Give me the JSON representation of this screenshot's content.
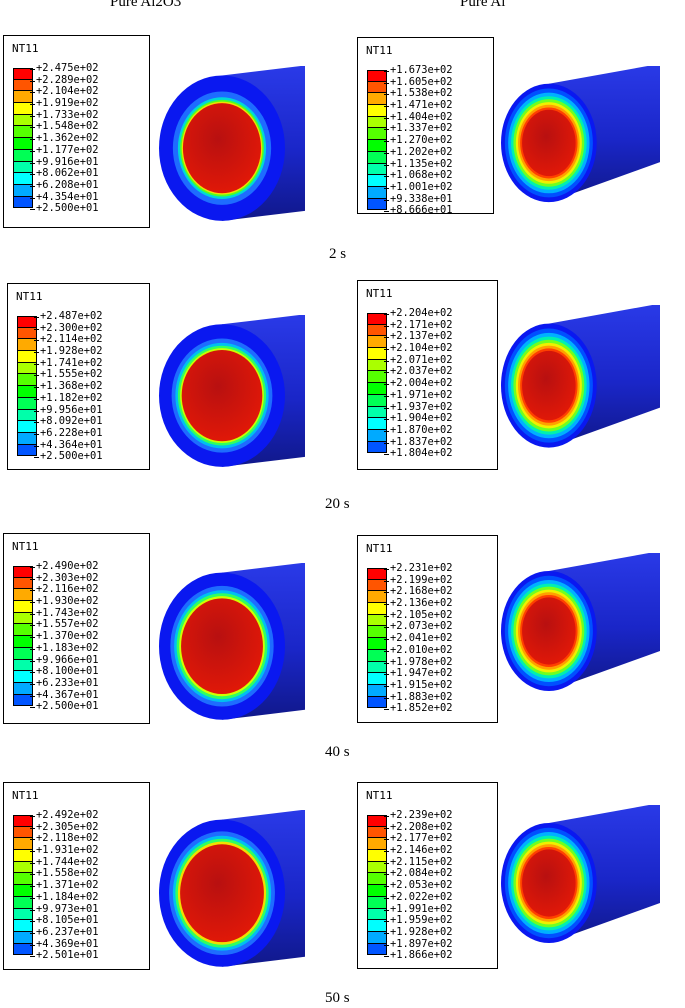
{
  "columns": [
    "Pure Al2O3",
    "Pure Al"
  ],
  "variable": "NT11",
  "times": [
    "2 s",
    "20 s",
    "40 s",
    "50 s"
  ],
  "legend_colors": [
    "#ff0000",
    "#ff5500",
    "#ffaa00",
    "#ffff00",
    "#aaff00",
    "#55ff00",
    "#00ff00",
    "#00ff55",
    "#00ffaa",
    "#00ffff",
    "#00aaff",
    "#0055ff",
    "#0000ff"
  ],
  "panels": [
    {
      "row": 0,
      "col": 0,
      "values": [
        "+2.475e+02",
        "+2.289e+02",
        "+2.104e+02",
        "+1.919e+02",
        "+1.733e+02",
        "+1.548e+02",
        "+1.362e+02",
        "+1.177e+02",
        "+9.916e+01",
        "+8.062e+01",
        "+6.208e+01",
        "+4.354e+01",
        "+2.500e+01"
      ]
    },
    {
      "row": 0,
      "col": 1,
      "values": [
        "+1.673e+02",
        "+1.605e+02",
        "+1.538e+02",
        "+1.471e+02",
        "+1.404e+02",
        "+1.337e+02",
        "+1.270e+02",
        "+1.202e+02",
        "+1.135e+02",
        "+1.068e+02",
        "+1.001e+02",
        "+9.338e+01",
        "+8.666e+01"
      ]
    },
    {
      "row": 1,
      "col": 0,
      "values": [
        "+2.487e+02",
        "+2.300e+02",
        "+2.114e+02",
        "+1.928e+02",
        "+1.741e+02",
        "+1.555e+02",
        "+1.368e+02",
        "+1.182e+02",
        "+9.956e+01",
        "+8.092e+01",
        "+6.228e+01",
        "+4.364e+01",
        "+2.500e+01"
      ]
    },
    {
      "row": 1,
      "col": 1,
      "values": [
        "+2.204e+02",
        "+2.171e+02",
        "+2.137e+02",
        "+2.104e+02",
        "+2.071e+02",
        "+2.037e+02",
        "+2.004e+02",
        "+1.971e+02",
        "+1.937e+02",
        "+1.904e+02",
        "+1.870e+02",
        "+1.837e+02",
        "+1.804e+02"
      ]
    },
    {
      "row": 2,
      "col": 0,
      "values": [
        "+2.490e+02",
        "+2.303e+02",
        "+2.116e+02",
        "+1.930e+02",
        "+1.743e+02",
        "+1.557e+02",
        "+1.370e+02",
        "+1.183e+02",
        "+9.966e+01",
        "+8.100e+01",
        "+6.233e+01",
        "+4.367e+01",
        "+2.500e+01"
      ]
    },
    {
      "row": 2,
      "col": 1,
      "values": [
        "+2.231e+02",
        "+2.199e+02",
        "+2.168e+02",
        "+2.136e+02",
        "+2.105e+02",
        "+2.073e+02",
        "+2.041e+02",
        "+2.010e+02",
        "+1.978e+02",
        "+1.947e+02",
        "+1.915e+02",
        "+1.883e+02",
        "+1.852e+02"
      ]
    },
    {
      "row": 3,
      "col": 0,
      "values": [
        "+2.492e+02",
        "+2.305e+02",
        "+2.118e+02",
        "+1.931e+02",
        "+1.744e+02",
        "+1.558e+02",
        "+1.371e+02",
        "+1.184e+02",
        "+9.973e+01",
        "+8.105e+01",
        "+6.237e+01",
        "+4.369e+01",
        "+2.501e+01"
      ]
    },
    {
      "row": 3,
      "col": 1,
      "values": [
        "+2.239e+02",
        "+2.208e+02",
        "+2.177e+02",
        "+2.146e+02",
        "+2.115e+02",
        "+2.084e+02",
        "+2.053e+02",
        "+2.022e+02",
        "+1.991e+02",
        "+1.959e+02",
        "+1.928e+02",
        "+1.897e+02",
        "+1.866e+02"
      ]
    }
  ]
}
